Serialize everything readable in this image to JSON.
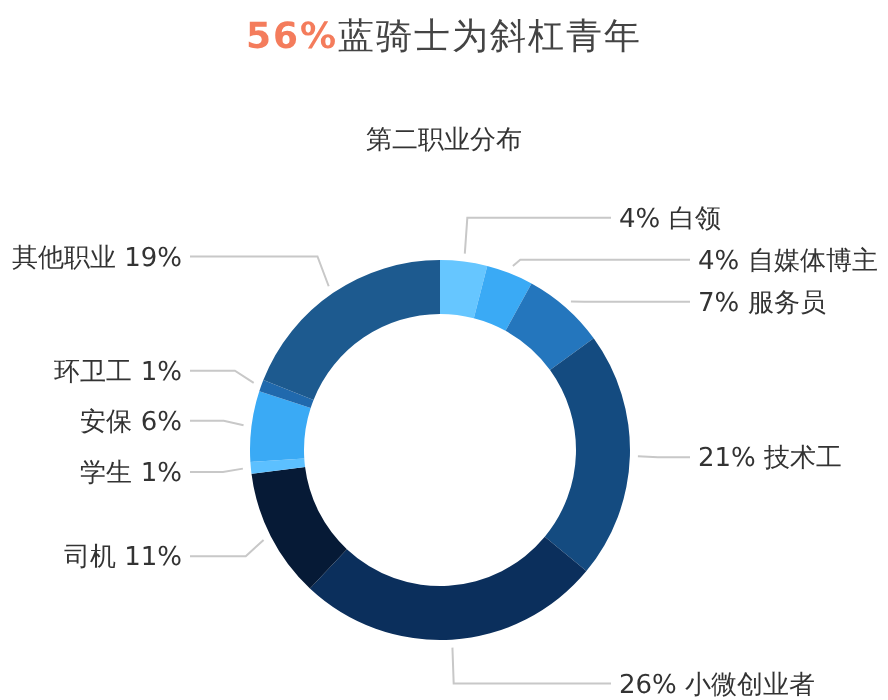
{
  "chart_data": {
    "type": "donut",
    "title": "56%蓝骑士为斜杠青年",
    "subtitle": "第二职业分布",
    "categories": [
      "白领",
      "自媒体博主",
      "服务员",
      "技术工",
      "小微创业者",
      "司机",
      "学生",
      "安保",
      "环卫工",
      "其他职业"
    ],
    "values": [
      4,
      4,
      7,
      21,
      26,
      11,
      1,
      6,
      1,
      19
    ],
    "value_labels": [
      "4%",
      "4%",
      "7%",
      "21%",
      "26%",
      "11%",
      "1%",
      "6%",
      "1%",
      "19%"
    ],
    "colors": [
      "#66c6ff",
      "#3aaaf5",
      "#2476bd",
      "#144b80",
      "#0b2f5c",
      "#061a36",
      "#5cc0ff",
      "#3aaaf5",
      "#2069ad",
      "#1d5a8f"
    ],
    "legend": false
  }
}
